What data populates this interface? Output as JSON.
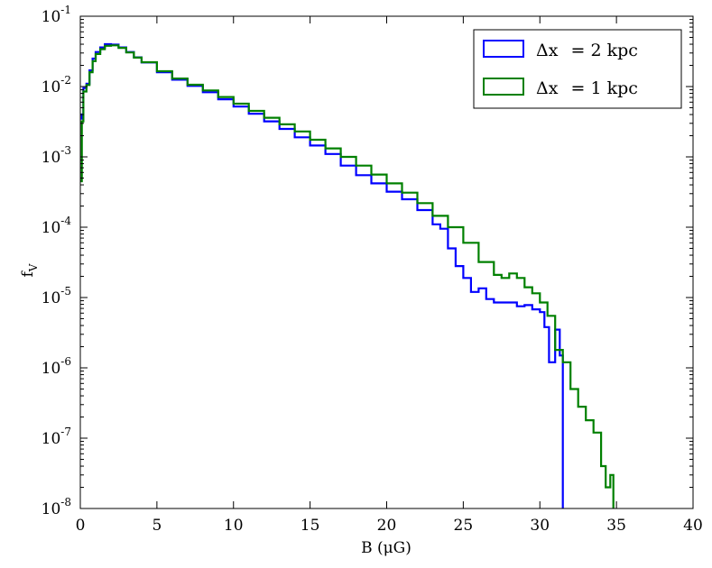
{
  "chart_data": {
    "type": "line",
    "step": true,
    "xlabel": "B (μG)",
    "ylabel": "f",
    "ylabel_sub": "V",
    "xlim": [
      0,
      40
    ],
    "ylim": [
      1e-08,
      0.1
    ],
    "yscale": "log",
    "grid": false,
    "legend_position": "top-right",
    "x_ticks": [
      0,
      5,
      10,
      15,
      20,
      25,
      30,
      35,
      40
    ],
    "y_ticks": [
      {
        "base": "10",
        "exp": "-8",
        "value": 1e-08
      },
      {
        "base": "10",
        "exp": "-7",
        "value": 1e-07
      },
      {
        "base": "10",
        "exp": "-6",
        "value": 1e-06
      },
      {
        "base": "10",
        "exp": "-5",
        "value": 1e-05
      },
      {
        "base": "10",
        "exp": "-4",
        "value": 0.0001
      },
      {
        "base": "10",
        "exp": "-3",
        "value": 0.001
      },
      {
        "base": "10",
        "exp": "-2",
        "value": 0.01
      },
      {
        "base": "10",
        "exp": "-1",
        "value": 0.1
      }
    ],
    "series": [
      {
        "name": "Δx = 2 kpc",
        "name_parts": {
          "delta": "Δx",
          "rest": "= 2 kpc"
        },
        "color": "#0000ff",
        "x": [
          0.0,
          0.1,
          0.2,
          0.4,
          0.6,
          0.8,
          1.0,
          1.3,
          1.6,
          2.0,
          2.5,
          3.0,
          3.5,
          4.0,
          5.0,
          6.0,
          7.0,
          8.0,
          9.0,
          10.0,
          11.0,
          12.0,
          13.0,
          14.0,
          15.0,
          16.0,
          17.0,
          18.0,
          19.0,
          20.0,
          21.0,
          22.0,
          23.0,
          23.5,
          24.0,
          24.5,
          25.0,
          25.5,
          26.0,
          26.5,
          27.0,
          27.5,
          28.0,
          28.5,
          29.0,
          29.5,
          30.0,
          30.3,
          30.6,
          31.0,
          31.3,
          31.5
        ],
        "y": [
          0.004,
          0.0035,
          0.0095,
          0.011,
          0.017,
          0.025,
          0.031,
          0.036,
          0.04,
          0.0395,
          0.036,
          0.031,
          0.026,
          0.022,
          0.016,
          0.0125,
          0.0102,
          0.0083,
          0.0066,
          0.0052,
          0.0041,
          0.0032,
          0.0025,
          0.0019,
          0.00145,
          0.0011,
          0.00075,
          0.00055,
          0.00042,
          0.00032,
          0.00025,
          0.000175,
          0.00011,
          9.5e-05,
          5e-05,
          2.8e-05,
          1.9e-05,
          1.2e-05,
          1.35e-05,
          9.5e-06,
          8.5e-06,
          8.5e-06,
          8.5e-06,
          7.5e-06,
          7.8e-06,
          6.8e-06,
          6.2e-06,
          3.8e-06,
          1.2e-06,
          3.5e-06,
          1.5e-06,
          1e-08
        ]
      },
      {
        "name": "Δx = 1 kpc",
        "name_parts": {
          "delta": "Δx",
          "rest": "= 1 kpc"
        },
        "color": "#008000",
        "x": [
          0.0,
          0.1,
          0.2,
          0.4,
          0.6,
          0.8,
          1.0,
          1.3,
          1.6,
          2.0,
          2.5,
          3.0,
          3.5,
          4.0,
          5.0,
          6.0,
          7.0,
          8.0,
          9.0,
          10.0,
          11.0,
          12.0,
          13.0,
          14.0,
          15.0,
          16.0,
          17.0,
          18.0,
          19.0,
          20.0,
          21.0,
          22.0,
          23.0,
          24.0,
          25.0,
          26.0,
          27.0,
          27.5,
          28.0,
          28.5,
          29.0,
          29.5,
          30.0,
          30.5,
          31.0,
          31.5,
          32.0,
          32.5,
          33.0,
          33.5,
          34.0,
          34.3,
          34.6,
          34.8
        ],
        "y": [
          0.00045,
          0.0032,
          0.0085,
          0.0105,
          0.016,
          0.023,
          0.029,
          0.034,
          0.038,
          0.0385,
          0.0355,
          0.0305,
          0.0258,
          0.0222,
          0.0165,
          0.013,
          0.0106,
          0.0088,
          0.0071,
          0.0057,
          0.0045,
          0.0036,
          0.0029,
          0.0023,
          0.00175,
          0.00132,
          0.001,
          0.00075,
          0.00056,
          0.00042,
          0.00031,
          0.00022,
          0.000145,
          0.0001,
          6e-05,
          3.2e-05,
          2.1e-05,
          1.9e-05,
          2.2e-05,
          1.9e-05,
          1.4e-05,
          1.15e-05,
          8.5e-06,
          5.5e-06,
          1.8e-06,
          1.2e-06,
          5e-07,
          2.8e-07,
          1.8e-07,
          1.2e-07,
          4e-08,
          2e-08,
          3e-08,
          1e-08
        ]
      }
    ]
  }
}
